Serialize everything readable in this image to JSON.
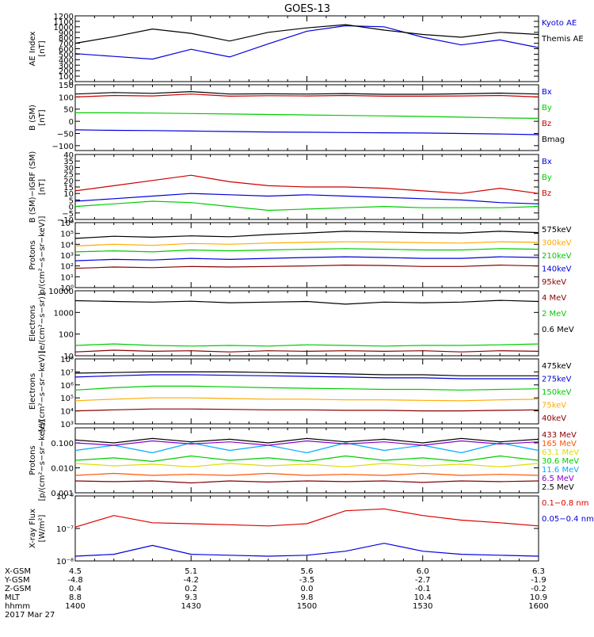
{
  "title": "GOES-13",
  "date_label": "2017 Mar 27",
  "ephemeris": {
    "row_labels": [
      "X-GSM",
      "Y-GSM",
      "Z-GSM",
      "MLT",
      "hhmm"
    ],
    "columns": [
      [
        "4.5",
        "-4.8",
        "0.4",
        "8.8",
        "1400"
      ],
      [
        "5.1",
        "-4.2",
        "0.2",
        "9.3",
        "1430"
      ],
      [
        "5.6",
        "-3.5",
        "0.0",
        "9.8",
        "1500"
      ],
      [
        "6.0",
        "-2.7",
        "-0.1",
        "10.4",
        "1530"
      ],
      [
        "6.3",
        "-1.9",
        "-0.2",
        "10.9",
        "1600"
      ]
    ]
  },
  "chart_data": [
    {
      "type": "line",
      "ylabel": [
        "AE Index",
        "[nT]"
      ],
      "scale": "linear",
      "ylim": [
        0,
        1200
      ],
      "yticks": [
        0,
        100,
        200,
        300,
        400,
        500,
        600,
        700,
        800,
        900,
        1000,
        1100,
        1200
      ],
      "yticklabels": [
        "0",
        "100",
        "200",
        "300",
        "400",
        "500",
        "600",
        "700",
        "800",
        "900",
        "1000",
        "1100",
        "1200"
      ],
      "x_minutes": [
        0,
        10,
        20,
        30,
        40,
        50,
        60,
        70,
        80,
        90,
        100,
        110,
        120
      ],
      "series": [
        {
          "name": "Kyoto AE",
          "color": "#0000dd",
          "values": [
            510,
            460,
            410,
            590,
            450,
            690,
            920,
            1020,
            1000,
            810,
            670,
            760,
            620
          ]
        },
        {
          "name": "Themis AE",
          "color": "#000000",
          "values": [
            700,
            820,
            960,
            880,
            740,
            900,
            980,
            1040,
            940,
            860,
            810,
            900,
            860
          ]
        }
      ]
    },
    {
      "type": "line",
      "ylabel": [
        "B (SM)",
        "[nT]"
      ],
      "scale": "linear",
      "ylim": [
        -120,
        150
      ],
      "yticks": [
        -100,
        -50,
        0,
        50,
        100,
        150
      ],
      "yticklabels": [
        "−100",
        "−50",
        "0",
        "50",
        "100",
        "150"
      ],
      "x_minutes": [
        0,
        10,
        20,
        30,
        40,
        50,
        60,
        70,
        80,
        90,
        100,
        110,
        120
      ],
      "series": [
        {
          "name": "Bx",
          "color": "#0000dd",
          "values": [
            -35,
            -37,
            -38,
            -40,
            -42,
            -44,
            -45,
            -46,
            -47,
            -48,
            -50,
            -52,
            -55
          ]
        },
        {
          "name": "By",
          "color": "#00cc00",
          "values": [
            35,
            35,
            34,
            32,
            30,
            28,
            26,
            24,
            22,
            20,
            17,
            14,
            12
          ]
        },
        {
          "name": "Bz",
          "color": "#cc0000",
          "values": [
            100,
            106,
            104,
            112,
            103,
            105,
            104,
            106,
            103,
            103,
            104,
            106,
            100
          ]
        },
        {
          "name": "Bmag",
          "color": "#000000",
          "values": [
            112,
            118,
            115,
            122,
            112,
            113,
            112,
            114,
            111,
            111,
            113,
            116,
            112
          ]
        }
      ]
    },
    {
      "type": "line",
      "ylabel": [
        "B (SM)−IGRF (SM)",
        "[nT]"
      ],
      "scale": "linear",
      "ylim": [
        -10,
        40
      ],
      "yticks": [
        -10,
        -5,
        0,
        5,
        10,
        15,
        20,
        25,
        30,
        35,
        40
      ],
      "yticklabels": [
        "−10",
        "−5",
        "0",
        "5",
        "10",
        "15",
        "20",
        "25",
        "30",
        "35",
        "40"
      ],
      "x_minutes": [
        0,
        10,
        20,
        30,
        40,
        50,
        60,
        70,
        80,
        90,
        100,
        110,
        120
      ],
      "series": [
        {
          "name": "Bx",
          "color": "#0000dd",
          "values": [
            4,
            6,
            8,
            10,
            9,
            8,
            9,
            8,
            7,
            6,
            5,
            3,
            2
          ]
        },
        {
          "name": "By",
          "color": "#00cc00",
          "values": [
            0,
            2,
            4,
            3,
            0,
            -3,
            -2,
            -1,
            0,
            -1,
            -1,
            -1,
            0
          ]
        },
        {
          "name": "Bz",
          "color": "#cc0000",
          "values": [
            12,
            16,
            20,
            24,
            19,
            16,
            15,
            15,
            14,
            12,
            10,
            14,
            10
          ]
        }
      ]
    },
    {
      "type": "line",
      "ylabel": [
        "Protons",
        "p/(cm²−s−sr−keV)]"
      ],
      "scale": "log",
      "ylim": [
        1,
        1000000
      ],
      "yticks": [
        1,
        10,
        100,
        1000,
        10000,
        100000,
        1000000
      ],
      "yticklabels": [
        "10⁰",
        "10¹",
        "10²",
        "10³",
        "10⁴",
        "10⁵",
        "10⁶"
      ],
      "x_minutes": [
        0,
        10,
        20,
        30,
        40,
        50,
        60,
        70,
        80,
        90,
        100,
        110,
        120
      ],
      "series": [
        {
          "name": "575keV",
          "color": "#000000",
          "values": [
            35000,
            55000,
            45000,
            60000,
            50000,
            80000,
            110000,
            160000,
            140000,
            120000,
            110000,
            160000,
            120000
          ]
        },
        {
          "name": "300keV",
          "color": "#ffaa00",
          "values": [
            7000,
            10000,
            8000,
            12000,
            10000,
            13000,
            15000,
            17000,
            16000,
            14000,
            13000,
            17000,
            15000
          ]
        },
        {
          "name": "210keV",
          "color": "#00cc00",
          "values": [
            2000,
            2500,
            2000,
            3000,
            2500,
            3000,
            3500,
            4000,
            3500,
            3000,
            3000,
            4000,
            3500
          ]
        },
        {
          "name": "140keV",
          "color": "#0000dd",
          "values": [
            300,
            400,
            350,
            500,
            400,
            500,
            600,
            700,
            600,
            500,
            500,
            700,
            600
          ]
        },
        {
          "name": "95keV",
          "color": "#880000",
          "values": [
            60,
            80,
            70,
            90,
            80,
            90,
            100,
            120,
            110,
            90,
            90,
            120,
            100
          ]
        }
      ]
    },
    {
      "type": "line",
      "ylabel": [
        "Electrons",
        "[e/(cm²−s−sr)]"
      ],
      "scale": "log",
      "ylim": [
        10,
        10000
      ],
      "yticks": [
        10,
        100,
        1000,
        10000
      ],
      "yticklabels": [
        "10",
        "100",
        "1000",
        "10000"
      ],
      "x_minutes": [
        0,
        10,
        20,
        30,
        40,
        50,
        60,
        70,
        80,
        90,
        100,
        110,
        120
      ],
      "series": [
        {
          "name": "4 MeV",
          "color": "#880000",
          "values": [
            15,
            18,
            16,
            17,
            15,
            17,
            16,
            17,
            16,
            17,
            15,
            17,
            16
          ]
        },
        {
          "name": "2 MeV",
          "color": "#00cc00",
          "values": [
            30,
            35,
            30,
            28,
            30,
            28,
            32,
            30,
            28,
            30,
            30,
            32,
            35
          ]
        },
        {
          "name": "0.6 MeV",
          "color": "#000000",
          "values": [
            3500,
            3200,
            3000,
            3300,
            2800,
            3000,
            3200,
            2400,
            3000,
            2800,
            3000,
            3600,
            3200
          ]
        }
      ]
    },
    {
      "type": "line",
      "ylabel": [
        "Electrons",
        "[e/(cm²−s−sr−keV)]"
      ],
      "scale": "log",
      "ylim": [
        1000,
        100000000
      ],
      "yticks": [
        1000,
        10000,
        100000,
        1000000,
        10000000,
        100000000
      ],
      "yticklabels": [
        "10³",
        "10⁴",
        "10⁵",
        "10⁶",
        "10⁷",
        "10⁸"
      ],
      "x_minutes": [
        0,
        10,
        20,
        30,
        40,
        50,
        60,
        70,
        80,
        90,
        100,
        110,
        120
      ],
      "series": [
        {
          "name": "475keV",
          "color": "#000000",
          "values": [
            8000000,
            9000000,
            10000000,
            10000000,
            10000000,
            9000000,
            8000000,
            7000000,
            6000000,
            6000000,
            5000000,
            5000000,
            5000000
          ]
        },
        {
          "name": "275keV",
          "color": "#0000dd",
          "values": [
            4000000,
            5000000,
            6000000,
            6000000,
            5500000,
            5000000,
            4500000,
            4000000,
            3500000,
            3500000,
            3000000,
            3000000,
            3000000
          ]
        },
        {
          "name": "150keV",
          "color": "#00cc00",
          "values": [
            400000,
            600000,
            800000,
            800000,
            700000,
            600000,
            550000,
            500000,
            450000,
            450000,
            400000,
            450000,
            500000
          ]
        },
        {
          "name": "75keV",
          "color": "#ffaa00",
          "values": [
            60000,
            80000,
            100000,
            100000,
            90000,
            80000,
            80000,
            70000,
            70000,
            65000,
            60000,
            70000,
            80000
          ]
        },
        {
          "name": "40keV",
          "color": "#880000",
          "values": [
            10000,
            12000,
            14000,
            14000,
            13000,
            12000,
            12000,
            11000,
            11000,
            10000,
            10000,
            11000,
            12000
          ]
        }
      ]
    },
    {
      "type": "line",
      "ylabel": [
        "Protons",
        "[p/(cm²−s−sr−keV)]"
      ],
      "scale": "log",
      "ylim": [
        0.001,
        0.4
      ],
      "yticks": [
        0.001,
        0.01,
        0.1
      ],
      "yticklabels": [
        "0.001",
        "0.010",
        "0.100"
      ],
      "x_minutes": [
        0,
        10,
        20,
        30,
        40,
        50,
        60,
        70,
        80,
        90,
        100,
        110,
        120
      ],
      "series": [
        {
          "name": "433 MeV",
          "color": "#880000",
          "values": [
            0.003,
            0.0028,
            0.003,
            0.0025,
            0.003,
            0.0027,
            0.003,
            0.0028,
            0.003,
            0.0026,
            0.003,
            0.0028,
            0.003
          ]
        },
        {
          "name": "165 MeV",
          "color": "#ff5500",
          "values": [
            0.005,
            0.006,
            0.005,
            0.0055,
            0.005,
            0.006,
            0.005,
            0.0055,
            0.005,
            0.006,
            0.005,
            0.0055,
            0.005
          ]
        },
        {
          "name": "63.1 MeV",
          "color": "#dddd00",
          "values": [
            0.015,
            0.012,
            0.014,
            0.011,
            0.015,
            0.012,
            0.014,
            0.011,
            0.015,
            0.012,
            0.014,
            0.011,
            0.015
          ]
        },
        {
          "name": "30.6 MeV",
          "color": "#00cc00",
          "values": [
            0.02,
            0.025,
            0.018,
            0.03,
            0.02,
            0.025,
            0.018,
            0.03,
            0.02,
            0.025,
            0.018,
            0.03,
            0.02
          ]
        },
        {
          "name": "11.6 MeV",
          "color": "#00aaff",
          "values": [
            0.05,
            0.08,
            0.04,
            0.1,
            0.05,
            0.08,
            0.04,
            0.1,
            0.05,
            0.08,
            0.04,
            0.1,
            0.05
          ]
        },
        {
          "name": "6.5 MeV",
          "color": "#8800cc",
          "values": [
            0.1,
            0.08,
            0.12,
            0.09,
            0.11,
            0.08,
            0.12,
            0.09,
            0.11,
            0.08,
            0.12,
            0.09,
            0.11
          ]
        },
        {
          "name": "2.5 MeV",
          "color": "#000000",
          "values": [
            0.13,
            0.1,
            0.15,
            0.11,
            0.14,
            0.1,
            0.15,
            0.11,
            0.14,
            0.1,
            0.15,
            0.11,
            0.14
          ]
        }
      ]
    },
    {
      "type": "line",
      "ylabel": [
        "X-ray Flux",
        "[W/m²]"
      ],
      "scale": "log",
      "ylim": [
        1e-08,
        1e-06
      ],
      "yticks": [
        1e-08,
        1e-07,
        1e-06
      ],
      "yticklabels": [
        "10⁻⁸",
        "10⁻⁷",
        "10⁻⁶"
      ],
      "x_minutes": [
        0,
        10,
        20,
        30,
        40,
        50,
        60,
        70,
        80,
        90,
        100,
        110,
        120
      ],
      "series": [
        {
          "name": "0.1−0.8 nm",
          "color": "#dd0000",
          "values": [
            1.1e-07,
            2.5e-07,
            1.5e-07,
            1.4e-07,
            1.3e-07,
            1.2e-07,
            1.4e-07,
            3.5e-07,
            4e-07,
            2.5e-07,
            1.8e-07,
            1.5e-07,
            1.2e-07
          ]
        },
        {
          "name": "0.05−0.4 nm",
          "color": "#0000dd",
          "values": [
            1.4e-08,
            1.6e-08,
            3e-08,
            1.6e-08,
            1.5e-08,
            1.4e-08,
            1.5e-08,
            2e-08,
            3.5e-08,
            2e-08,
            1.6e-08,
            1.5e-08,
            1.4e-08
          ]
        }
      ]
    }
  ]
}
